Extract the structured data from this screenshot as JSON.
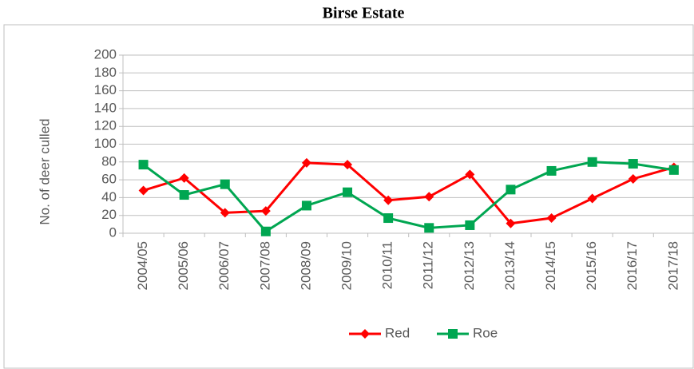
{
  "chart_data": {
    "type": "line",
    "title": "Birse Estate",
    "ylabel": "No. of deer culled",
    "categories": [
      "2004/05",
      "2005/06",
      "2006/07",
      "2007/08",
      "2008/09",
      "2009/10",
      "2010/11",
      "2011/12",
      "2012/13",
      "2013/14",
      "2014/15",
      "2015/16",
      "2016/17",
      "2017/18"
    ],
    "series": [
      {
        "name": "Red",
        "color": "#ff0000",
        "marker": "diamond",
        "values": [
          48,
          62,
          23,
          25,
          79,
          77,
          37,
          41,
          66,
          11,
          17,
          39,
          61,
          74
        ]
      },
      {
        "name": "Roe",
        "color": "#00a651",
        "marker": "square",
        "values": [
          77,
          43,
          55,
          2,
          31,
          46,
          17,
          6,
          9,
          49,
          70,
          80,
          78,
          71
        ]
      }
    ],
    "ylim": [
      0,
      200
    ],
    "yticks": [
      0,
      20,
      40,
      60,
      80,
      100,
      120,
      140,
      160,
      180,
      200
    ],
    "grid": true,
    "legend": "bottom"
  }
}
